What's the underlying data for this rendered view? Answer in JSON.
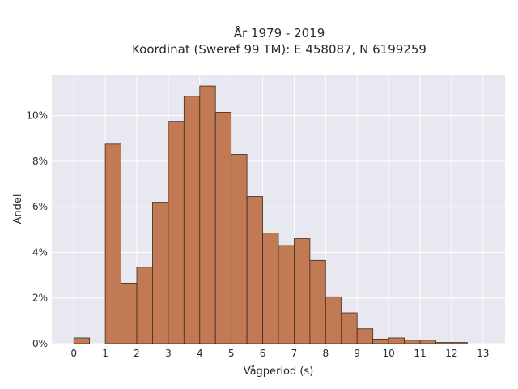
{
  "chart_data": {
    "type": "bar",
    "title": "År 1979 - 2019",
    "subtitle": "Koordinat (Sweref 99 TM): E 458087, N 6199259",
    "xlabel": "Vågperiod (s)",
    "ylabel": "Andel",
    "bin_width": 0.5,
    "bins": [
      {
        "start": 0.0,
        "value": 0.25
      },
      {
        "start": 0.5,
        "value": 0.0
      },
      {
        "start": 1.0,
        "value": 8.75
      },
      {
        "start": 1.5,
        "value": 2.65
      },
      {
        "start": 2.0,
        "value": 3.35
      },
      {
        "start": 2.5,
        "value": 6.2
      },
      {
        "start": 3.0,
        "value": 9.75
      },
      {
        "start": 3.5,
        "value": 10.85
      },
      {
        "start": 4.0,
        "value": 11.3
      },
      {
        "start": 4.5,
        "value": 10.15
      },
      {
        "start": 5.0,
        "value": 8.3
      },
      {
        "start": 5.5,
        "value": 6.45
      },
      {
        "start": 6.0,
        "value": 4.85
      },
      {
        "start": 6.5,
        "value": 4.3
      },
      {
        "start": 7.0,
        "value": 4.6
      },
      {
        "start": 7.5,
        "value": 3.65
      },
      {
        "start": 8.0,
        "value": 2.05
      },
      {
        "start": 8.5,
        "value": 1.35
      },
      {
        "start": 9.0,
        "value": 0.65
      },
      {
        "start": 9.5,
        "value": 0.2
      },
      {
        "start": 10.0,
        "value": 0.25
      },
      {
        "start": 10.5,
        "value": 0.15
      },
      {
        "start": 11.0,
        "value": 0.15
      },
      {
        "start": 11.5,
        "value": 0.05
      },
      {
        "start": 12.0,
        "value": 0.05
      },
      {
        "start": 12.5,
        "value": 0.0
      }
    ],
    "xlim": [
      -0.7,
      13.7
    ],
    "ylim": [
      0,
      11.8
    ],
    "xticks": [
      0,
      1,
      2,
      3,
      4,
      5,
      6,
      7,
      8,
      9,
      10,
      11,
      12,
      13
    ],
    "xtick_labels": [
      "0",
      "1",
      "2",
      "3",
      "4",
      "5",
      "6",
      "7",
      "8",
      "9",
      "10",
      "11",
      "12",
      "13"
    ],
    "yticks": [
      0,
      2,
      4,
      6,
      8,
      10
    ],
    "ytick_labels": [
      "0%",
      "2%",
      "4%",
      "6%",
      "8%",
      "10%"
    ],
    "grid": true,
    "colors": {
      "bar": "#c17a54",
      "bar_edge": "#3d2a20",
      "plot_background": "#e8e8f1",
      "grid": "#ffffff"
    }
  }
}
